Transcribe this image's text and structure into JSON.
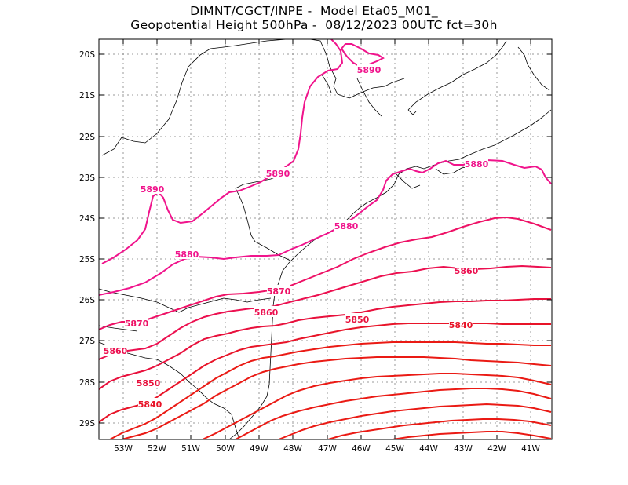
{
  "title": {
    "line1": "DIMNT/CGCT/INPE -  Model Eta05_M01_",
    "line2": "Geopotential Height 500hPa -  08/12/2023 00UTC fct=30h"
  },
  "axes": {
    "lat_labels": [
      "20S",
      "21S",
      "22S",
      "23S",
      "24S",
      "25S",
      "26S",
      "27S",
      "28S",
      "29S"
    ],
    "lon_labels": [
      "53W",
      "52W",
      "51W",
      "50W",
      "49W",
      "48W",
      "47W",
      "46W",
      "45W",
      "44W",
      "43W",
      "42W",
      "41W"
    ]
  },
  "colors": {
    "c5890": "#f0148c",
    "c5880": "#f0148c",
    "c5870": "#ee1166",
    "c5860": "#ec1050",
    "c5850": "#e8103c",
    "c5840": "#e81428",
    "c_low": "#ea1a14",
    "coast": "#000000",
    "grid": "#999999"
  },
  "contour_labels": [
    {
      "text": "5890",
      "color": "#f0148c"
    },
    {
      "text": "5890",
      "color": "#f0148c"
    },
    {
      "text": "5890",
      "color": "#f0148c"
    },
    {
      "text": "5880",
      "color": "#f0148c"
    },
    {
      "text": "5880",
      "color": "#f0148c"
    },
    {
      "text": "5880",
      "color": "#f0148c"
    },
    {
      "text": "5870",
      "color": "#ee1166"
    },
    {
      "text": "5870",
      "color": "#ee1166"
    },
    {
      "text": "5860",
      "color": "#ec1050"
    },
    {
      "text": "5860",
      "color": "#ec1050"
    },
    {
      "text": "5860",
      "color": "#ec1050"
    },
    {
      "text": "5850",
      "color": "#e8103c"
    },
    {
      "text": "5850",
      "color": "#e8103c"
    },
    {
      "text": "5840",
      "color": "#e81428"
    },
    {
      "text": "5840",
      "color": "#e81428"
    }
  ]
}
